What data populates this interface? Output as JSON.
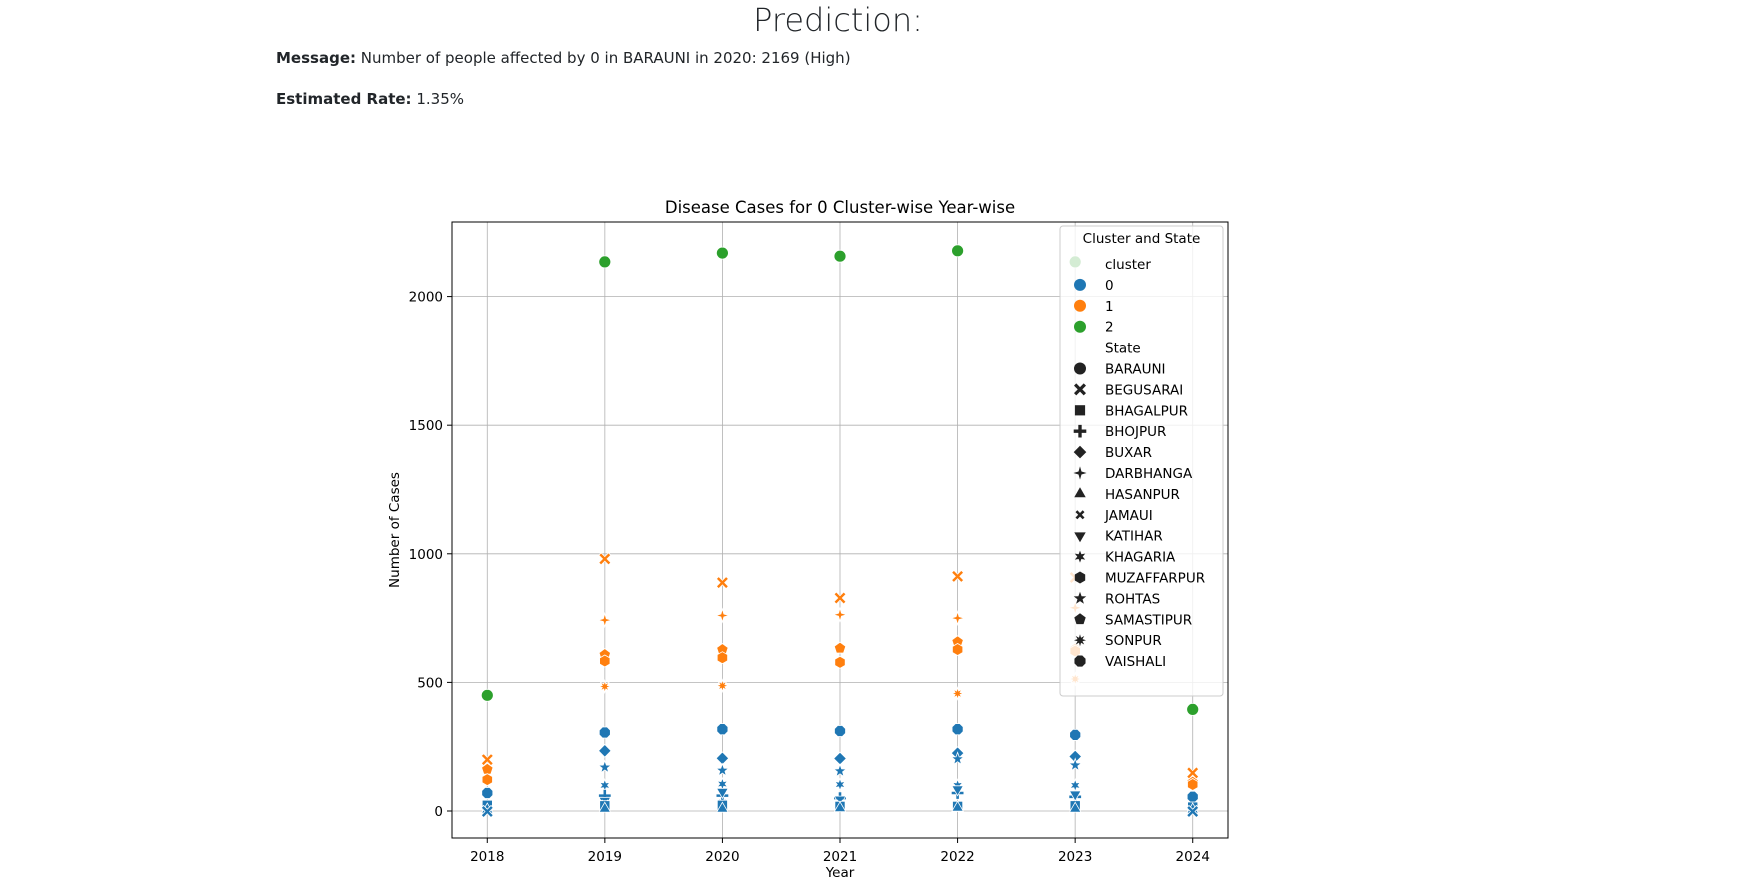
{
  "page": {
    "heading": "Prediction:",
    "message_label": "Message:",
    "message_text": "Number of people affected by 0 in BARAUNI in 2020: 2169 (High)",
    "rate_label": "Estimated Rate:",
    "rate_text": "1.35%"
  },
  "chart_data": {
    "type": "scatter",
    "title": "Disease Cases for 0 Cluster-wise Year-wise",
    "xlabel": "Year",
    "ylabel": "Number of Cases",
    "x_ticks": [
      2018,
      2019,
      2020,
      2021,
      2022,
      2023,
      2024
    ],
    "y_ticks": [
      0,
      500,
      1000,
      1500,
      2000
    ],
    "xlim": [
      2017.7,
      2024.3
    ],
    "ylim": [
      -105,
      2290
    ],
    "grid": true,
    "legend": {
      "title": "Cluster and State",
      "placement": "upper right",
      "cluster_heading": "cluster",
      "state_heading": "State",
      "clusters": [
        {
          "label": "0",
          "color": "#1f77b4"
        },
        {
          "label": "1",
          "color": "#ff7f0e"
        },
        {
          "label": "2",
          "color": "#2ca02c"
        }
      ],
      "states": [
        {
          "label": "BARAUNI",
          "marker": "circle"
        },
        {
          "label": "BEGUSARAI",
          "marker": "x"
        },
        {
          "label": "BHAGALPUR",
          "marker": "square"
        },
        {
          "label": "BHOJPUR",
          "marker": "plus"
        },
        {
          "label": "BUXAR",
          "marker": "diamond"
        },
        {
          "label": "DARBHANGA",
          "marker": "star4"
        },
        {
          "label": "HASANPUR",
          "marker": "triangle-up"
        },
        {
          "label": "JAMAUI",
          "marker": "x-small"
        },
        {
          "label": "KATIHAR",
          "marker": "triangle-down"
        },
        {
          "label": "KHAGARIA",
          "marker": "star6"
        },
        {
          "label": "MUZAFFARPUR",
          "marker": "hexagon"
        },
        {
          "label": "ROHTAS",
          "marker": "star5"
        },
        {
          "label": "SAMASTIPUR",
          "marker": "pentagon"
        },
        {
          "label": "SONPUR",
          "marker": "star8"
        },
        {
          "label": "VAISHALI",
          "marker": "octagon"
        }
      ]
    },
    "points": [
      {
        "x": 2018,
        "y": 450,
        "cluster": "2",
        "state": "BARAUNI"
      },
      {
        "x": 2019,
        "y": 2135,
        "cluster": "2",
        "state": "BARAUNI"
      },
      {
        "x": 2020,
        "y": 2169,
        "cluster": "2",
        "state": "BARAUNI"
      },
      {
        "x": 2021,
        "y": 2157,
        "cluster": "2",
        "state": "BARAUNI"
      },
      {
        "x": 2022,
        "y": 2178,
        "cluster": "2",
        "state": "BARAUNI"
      },
      {
        "x": 2023,
        "y": 2135,
        "cluster": "2",
        "state": "BARAUNI"
      },
      {
        "x": 2024,
        "y": 395,
        "cluster": "2",
        "state": "BARAUNI"
      },
      {
        "x": 2018,
        "y": 200,
        "cluster": "1",
        "state": "BEGUSARAI"
      },
      {
        "x": 2019,
        "y": 980,
        "cluster": "1",
        "state": "BEGUSARAI"
      },
      {
        "x": 2020,
        "y": 888,
        "cluster": "1",
        "state": "BEGUSARAI"
      },
      {
        "x": 2021,
        "y": 828,
        "cluster": "1",
        "state": "BEGUSARAI"
      },
      {
        "x": 2022,
        "y": 912,
        "cluster": "1",
        "state": "BEGUSARAI"
      },
      {
        "x": 2023,
        "y": 908,
        "cluster": "1",
        "state": "BEGUSARAI"
      },
      {
        "x": 2024,
        "y": 148,
        "cluster": "1",
        "state": "BEGUSARAI"
      },
      {
        "x": 2018,
        "y": 162,
        "cluster": "1",
        "state": "SAMASTIPUR"
      },
      {
        "x": 2019,
        "y": 608,
        "cluster": "1",
        "state": "SAMASTIPUR"
      },
      {
        "x": 2020,
        "y": 628,
        "cluster": "1",
        "state": "SAMASTIPUR"
      },
      {
        "x": 2021,
        "y": 633,
        "cluster": "1",
        "state": "SAMASTIPUR"
      },
      {
        "x": 2022,
        "y": 658,
        "cluster": "1",
        "state": "SAMASTIPUR"
      },
      {
        "x": 2023,
        "y": 630,
        "cluster": "1",
        "state": "SAMASTIPUR"
      },
      {
        "x": 2024,
        "y": 112,
        "cluster": "1",
        "state": "SAMASTIPUR"
      },
      {
        "x": 2018,
        "y": 122,
        "cluster": "1",
        "state": "MUZAFFARPUR"
      },
      {
        "x": 2019,
        "y": 583,
        "cluster": "1",
        "state": "MUZAFFARPUR"
      },
      {
        "x": 2020,
        "y": 596,
        "cluster": "1",
        "state": "MUZAFFARPUR"
      },
      {
        "x": 2021,
        "y": 578,
        "cluster": "1",
        "state": "MUZAFFARPUR"
      },
      {
        "x": 2022,
        "y": 628,
        "cluster": "1",
        "state": "MUZAFFARPUR"
      },
      {
        "x": 2023,
        "y": 622,
        "cluster": "1",
        "state": "MUZAFFARPUR"
      },
      {
        "x": 2024,
        "y": 103,
        "cluster": "1",
        "state": "MUZAFFARPUR"
      },
      {
        "x": 2019,
        "y": 742,
        "cluster": "1",
        "state": "DARBHANGA"
      },
      {
        "x": 2020,
        "y": 760,
        "cluster": "1",
        "state": "DARBHANGA"
      },
      {
        "x": 2021,
        "y": 763,
        "cluster": "1",
        "state": "DARBHANGA"
      },
      {
        "x": 2022,
        "y": 750,
        "cluster": "1",
        "state": "DARBHANGA"
      },
      {
        "x": 2023,
        "y": 790,
        "cluster": "1",
        "state": "DARBHANGA"
      },
      {
        "x": 2019,
        "y": 484,
        "cluster": "1",
        "state": "SONPUR"
      },
      {
        "x": 2020,
        "y": 487,
        "cluster": "1",
        "state": "SONPUR"
      },
      {
        "x": 2022,
        "y": 457,
        "cluster": "1",
        "state": "SONPUR"
      },
      {
        "x": 2023,
        "y": 513,
        "cluster": "1",
        "state": "SONPUR"
      },
      {
        "x": 2018,
        "y": 70,
        "cluster": "0",
        "state": "VAISHALI"
      },
      {
        "x": 2019,
        "y": 305,
        "cluster": "0",
        "state": "VAISHALI"
      },
      {
        "x": 2020,
        "y": 318,
        "cluster": "0",
        "state": "VAISHALI"
      },
      {
        "x": 2021,
        "y": 311,
        "cluster": "0",
        "state": "VAISHALI"
      },
      {
        "x": 2022,
        "y": 318,
        "cluster": "0",
        "state": "VAISHALI"
      },
      {
        "x": 2023,
        "y": 296,
        "cluster": "0",
        "state": "VAISHALI"
      },
      {
        "x": 2024,
        "y": 55,
        "cluster": "0",
        "state": "VAISHALI"
      },
      {
        "x": 2019,
        "y": 234,
        "cluster": "0",
        "state": "BUXAR"
      },
      {
        "x": 2020,
        "y": 205,
        "cluster": "0",
        "state": "BUXAR"
      },
      {
        "x": 2021,
        "y": 204,
        "cluster": "0",
        "state": "BUXAR"
      },
      {
        "x": 2022,
        "y": 225,
        "cluster": "0",
        "state": "BUXAR"
      },
      {
        "x": 2023,
        "y": 212,
        "cluster": "0",
        "state": "BUXAR"
      },
      {
        "x": 2019,
        "y": 170,
        "cluster": "0",
        "state": "ROHTAS"
      },
      {
        "x": 2020,
        "y": 158,
        "cluster": "0",
        "state": "ROHTAS"
      },
      {
        "x": 2021,
        "y": 155,
        "cluster": "0",
        "state": "ROHTAS"
      },
      {
        "x": 2022,
        "y": 202,
        "cluster": "0",
        "state": "ROHTAS"
      },
      {
        "x": 2023,
        "y": 178,
        "cluster": "0",
        "state": "ROHTAS"
      },
      {
        "x": 2019,
        "y": 100,
        "cluster": "0",
        "state": "KHAGARIA"
      },
      {
        "x": 2020,
        "y": 105,
        "cluster": "0",
        "state": "KHAGARIA"
      },
      {
        "x": 2021,
        "y": 103,
        "cluster": "0",
        "state": "KHAGARIA"
      },
      {
        "x": 2022,
        "y": 100,
        "cluster": "0",
        "state": "KHAGARIA"
      },
      {
        "x": 2023,
        "y": 100,
        "cluster": "0",
        "state": "KHAGARIA"
      },
      {
        "x": 2019,
        "y": 60,
        "cluster": "0",
        "state": "BHOJPUR"
      },
      {
        "x": 2020,
        "y": 60,
        "cluster": "0",
        "state": "BHOJPUR"
      },
      {
        "x": 2021,
        "y": 50,
        "cluster": "0",
        "state": "BHOJPUR"
      },
      {
        "x": 2022,
        "y": 70,
        "cluster": "0",
        "state": "BHOJPUR"
      },
      {
        "x": 2023,
        "y": 55,
        "cluster": "0",
        "state": "BHOJPUR"
      },
      {
        "x": 2018,
        "y": 30,
        "cluster": "0",
        "state": "KATIHAR"
      },
      {
        "x": 2019,
        "y": 40,
        "cluster": "0",
        "state": "KATIHAR"
      },
      {
        "x": 2020,
        "y": 75,
        "cluster": "0",
        "state": "KATIHAR"
      },
      {
        "x": 2021,
        "y": 45,
        "cluster": "0",
        "state": "KATIHAR"
      },
      {
        "x": 2022,
        "y": 85,
        "cluster": "0",
        "state": "KATIHAR"
      },
      {
        "x": 2023,
        "y": 65,
        "cluster": "0",
        "state": "KATIHAR"
      },
      {
        "x": 2024,
        "y": 20,
        "cluster": "0",
        "state": "KATIHAR"
      },
      {
        "x": 2018,
        "y": 10,
        "cluster": "0",
        "state": "JAMAUI"
      },
      {
        "x": 2019,
        "y": 25,
        "cluster": "0",
        "state": "JAMAUI"
      },
      {
        "x": 2020,
        "y": 30,
        "cluster": "0",
        "state": "JAMAUI"
      },
      {
        "x": 2021,
        "y": 25,
        "cluster": "0",
        "state": "JAMAUI"
      },
      {
        "x": 2022,
        "y": 25,
        "cluster": "0",
        "state": "JAMAUI"
      },
      {
        "x": 2023,
        "y": 20,
        "cluster": "0",
        "state": "JAMAUI"
      },
      {
        "x": 2024,
        "y": 10,
        "cluster": "0",
        "state": "JAMAUI"
      },
      {
        "x": 2018,
        "y": 22,
        "cluster": "0",
        "state": "BHAGALPUR"
      },
      {
        "x": 2019,
        "y": 20,
        "cluster": "0",
        "state": "BHAGALPUR"
      },
      {
        "x": 2020,
        "y": 22,
        "cluster": "0",
        "state": "BHAGALPUR"
      },
      {
        "x": 2021,
        "y": 18,
        "cluster": "0",
        "state": "BHAGALPUR"
      },
      {
        "x": 2022,
        "y": 18,
        "cluster": "0",
        "state": "BHAGALPUR"
      },
      {
        "x": 2023,
        "y": 20,
        "cluster": "0",
        "state": "BHAGALPUR"
      },
      {
        "x": 2024,
        "y": 15,
        "cluster": "0",
        "state": "BHAGALPUR"
      },
      {
        "x": 2018,
        "y": 5,
        "cluster": "0",
        "state": "HASANPUR"
      },
      {
        "x": 2019,
        "y": 8,
        "cluster": "0",
        "state": "HASANPUR"
      },
      {
        "x": 2020,
        "y": 8,
        "cluster": "0",
        "state": "HASANPUR"
      },
      {
        "x": 2021,
        "y": 10,
        "cluster": "0",
        "state": "HASANPUR"
      },
      {
        "x": 2022,
        "y": 12,
        "cluster": "0",
        "state": "HASANPUR"
      },
      {
        "x": 2023,
        "y": 8,
        "cluster": "0",
        "state": "HASANPUR"
      },
      {
        "x": 2024,
        "y": 5,
        "cluster": "0",
        "state": "HASANPUR"
      },
      {
        "x": 2018,
        "y": -2,
        "cluster": "0",
        "state": "BEGUSARAI"
      },
      {
        "x": 2024,
        "y": -2,
        "cluster": "0",
        "state": "BEGUSARAI"
      }
    ]
  }
}
